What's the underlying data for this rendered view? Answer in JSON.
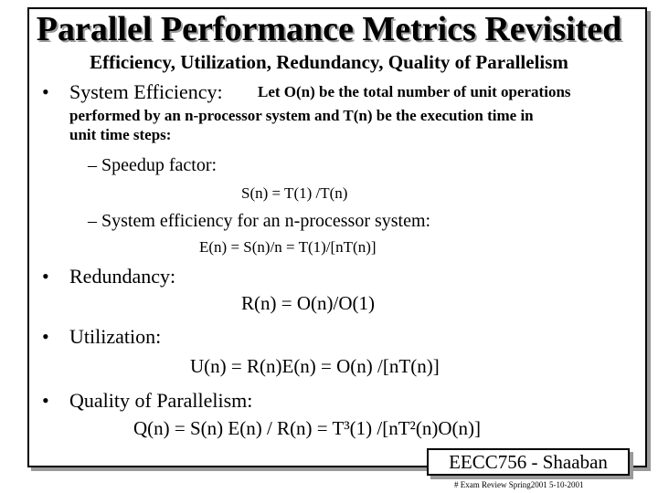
{
  "slide": {
    "title": "Parallel Performance Metrics Revisited",
    "subtitle": "Efficiency, Utilization, Redundancy, Quality of Parallelism",
    "bullets": {
      "system_efficiency_label": "System Efficiency:",
      "system_efficiency_desc_1": "Let O(n) be the total number of unit operations",
      "system_efficiency_desc_2": "performed by an n-processor system and T(n) be the execution time in",
      "system_efficiency_desc_3": "unit time steps:",
      "speedup_label": "– Speedup factor:",
      "speedup_formula": "S(n) = T(1) /T(n)",
      "sys_eff_label": "– System efficiency for an n-processor system:",
      "sys_eff_formula": "E(n) = S(n)/n = T(1)/[nT(n)]",
      "redundancy_label": "Redundancy:",
      "redundancy_formula": "R(n) = O(n)/O(1)",
      "utilization_label": "Utilization:",
      "utilization_formula": "U(n) = R(n)E(n) = O(n) /[nT(n)]",
      "quality_label": "Quality of Parallelism:",
      "quality_formula": "Q(n) = S(n) E(n) / R(n) = T³(1) /[nT²(n)O(n)]"
    },
    "badge": "EECC756 - Shaaban",
    "footer": "# Exam Review Spring2001 5-10-2001"
  }
}
